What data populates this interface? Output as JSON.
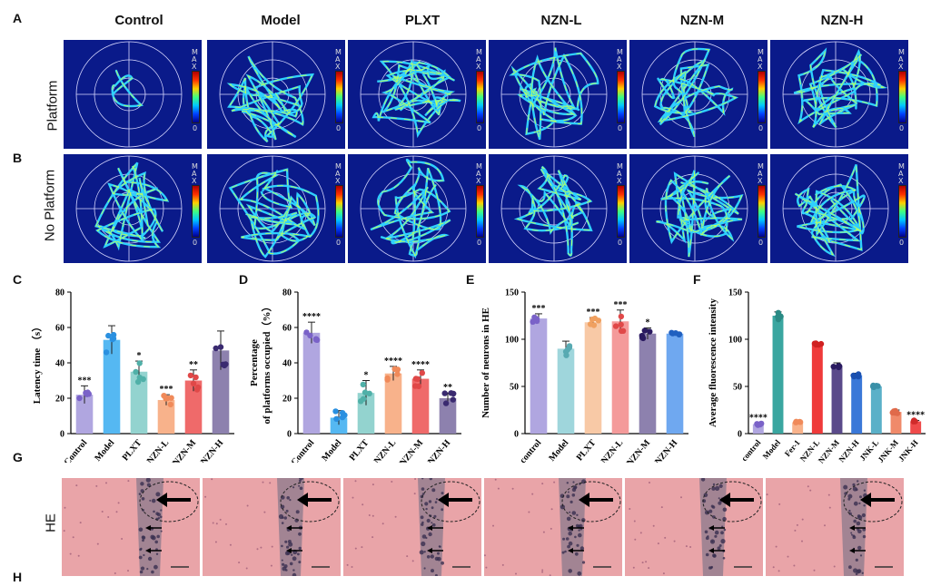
{
  "panel_labels": {
    "A": "A",
    "B": "B",
    "C": "C",
    "D": "D",
    "E": "E",
    "F": "F",
    "G": "G",
    "H": "H"
  },
  "columns": [
    "Control",
    "Model",
    "PLXT",
    "NZN-L",
    "NZN-M",
    "NZN-H"
  ],
  "rows": {
    "platform": "Platform",
    "no_platform": "No Platform",
    "he": "HE"
  },
  "colorbar": {
    "max": "MAX",
    "min": "0"
  },
  "colors": {
    "track_bg": "#0a1a8a",
    "he_tissue": "#e9a4a8"
  },
  "chart_data": [
    {
      "id": "C",
      "type": "bar",
      "title": "",
      "ylabel": "Latency time （s）",
      "ylim": [
        0,
        80
      ],
      "yticks": [
        "0",
        "20",
        "40",
        "60",
        "80"
      ],
      "categories": [
        "Control",
        "Model",
        "PLXT",
        "NZN-L",
        "NZN-M",
        "NZN-H"
      ],
      "values": [
        22,
        53,
        35,
        19,
        30,
        47
      ],
      "errors": [
        5,
        8,
        6,
        3,
        6,
        11
      ],
      "sig": [
        "***",
        "",
        "*",
        "***",
        "**",
        ""
      ],
      "colors": [
        "#b0a6e0",
        "#55b8f2",
        "#93d3cf",
        "#f8b28b",
        "#ef6a6a",
        "#8d81ae"
      ],
      "dots": [
        "#7a62c8",
        "#2a90e0",
        "#50b0a8",
        "#f08a5a",
        "#e04848",
        "#3a2a70"
      ]
    },
    {
      "id": "D",
      "type": "bar",
      "title": "",
      "ylabel": "Percentage of platforms occupied（%）",
      "ylim": [
        0,
        80
      ],
      "yticks": [
        "0",
        "20",
        "40",
        "60",
        "80"
      ],
      "categories": [
        "Control",
        "Model",
        "PLXT",
        "NZN-L",
        "NZN-M",
        "NZN-H"
      ],
      "values": [
        57,
        9,
        23,
        34,
        31,
        20
      ],
      "errors": [
        6,
        4,
        7,
        4,
        5,
        3
      ],
      "sig": [
        "****",
        "",
        "*",
        "****",
        "****",
        "**"
      ],
      "colors": [
        "#b0a6e0",
        "#55b8f2",
        "#93d3cf",
        "#f8b28b",
        "#ef6a6a",
        "#8d81ae"
      ],
      "dots": [
        "#7a62c8",
        "#2a90e0",
        "#50b0a8",
        "#f08a5a",
        "#e04848",
        "#3a2a70"
      ]
    },
    {
      "id": "E",
      "type": "bar",
      "title": "",
      "ylabel": "Number of neurons in HE",
      "ylim": [
        0,
        150
      ],
      "yticks": [
        "0",
        "50",
        "100",
        "150"
      ],
      "categories": [
        "control",
        "Model",
        "PLXT",
        "NZN-L",
        "NZN-M",
        "NZN-H"
      ],
      "values": [
        122,
        90,
        118,
        119,
        106,
        106
      ],
      "errors": [
        5,
        8,
        5,
        12,
        6,
        1
      ],
      "sig": [
        "***",
        "",
        "***",
        "***",
        "*",
        ""
      ],
      "colors": [
        "#b0a6e0",
        "#9fd6dc",
        "#f8c9a6",
        "#f49a9a",
        "#8d81ae",
        "#6fa8f0"
      ],
      "dots": [
        "#7a62c8",
        "#58aab2",
        "#f0a060",
        "#e04848",
        "#2a1a60",
        "#2060c0"
      ]
    },
    {
      "id": "F",
      "type": "bar",
      "title": "",
      "ylabel": "Average fluorescence intensity",
      "ylim": [
        0,
        150
      ],
      "yticks": [
        "0",
        "50",
        "100",
        "150"
      ],
      "categories": [
        "control",
        "Model",
        "Fer-1",
        "NZN-L",
        "NZN-M",
        "NZN-H",
        "JNK-L",
        "JNK-M",
        "JNK-H"
      ],
      "values": [
        10,
        125,
        12,
        95,
        72,
        62,
        50,
        23,
        13
      ],
      "errors": [
        1,
        4,
        1,
        1,
        3,
        2,
        1,
        2,
        1
      ],
      "sig": [
        "****",
        "",
        "",
        "",
        "",
        "",
        "",
        "",
        "****"
      ],
      "colors": [
        "#b0a6e0",
        "#3aa6a0",
        "#f8b28b",
        "#ef3a3a",
        "#5a4a8a",
        "#3a78d8",
        "#5ab0c8",
        "#f08a6a",
        "#ef4a4a"
      ],
      "dots": [
        "#7a62c8",
        "#2a8a84",
        "#f08a5a",
        "#d02020",
        "#2a1a60",
        "#1a50b0",
        "#3a90a8",
        "#e06a4a",
        "#d02a2a"
      ]
    }
  ]
}
